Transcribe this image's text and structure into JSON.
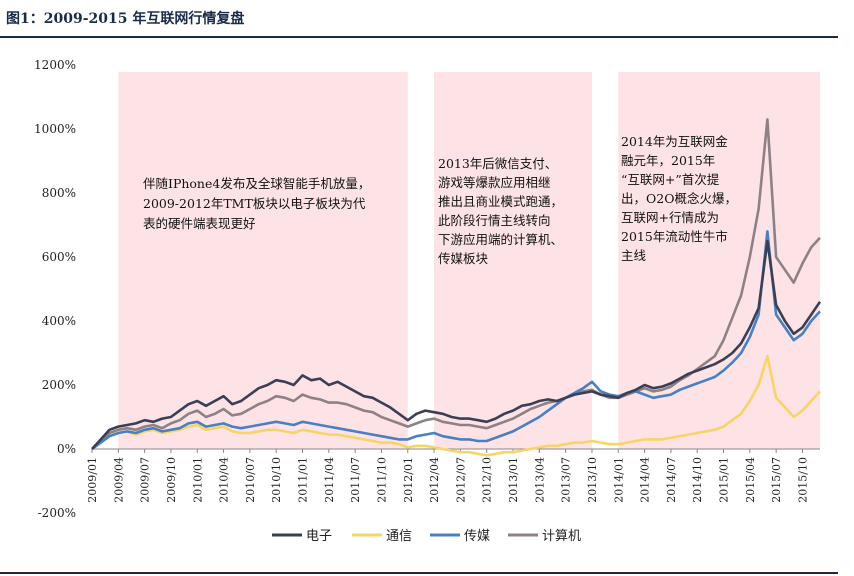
{
  "header": {
    "title": "图1：2009-2015 年互联网行情复盘"
  },
  "colors": {
    "shade": "#fde3e5",
    "axis": "#888888"
  },
  "chart_data": {
    "type": "line",
    "title": "图1：2009-2015 年互联网行情复盘",
    "xlabel": "",
    "ylabel": "",
    "ylim": [
      -200,
      1200
    ],
    "y_ticks": [
      "1200%",
      "1000%",
      "800%",
      "600%",
      "400%",
      "200%",
      "0%",
      "-200%"
    ],
    "y_tick_values": [
      1200,
      1000,
      800,
      600,
      400,
      200,
      0,
      -200
    ],
    "x_ticks": [
      "2009/01",
      "2009/04",
      "2009/07",
      "2009/10",
      "2010/01",
      "2010/04",
      "2010/07",
      "2010/10",
      "2011/01",
      "2011/04",
      "2011/07",
      "2011/10",
      "2012/01",
      "2012/04",
      "2012/07",
      "2012/10",
      "2013/01",
      "2013/04",
      "2013/07",
      "2013/10",
      "2014/01",
      "2014/04",
      "2014/07",
      "2014/10",
      "2015/01",
      "2015/04",
      "2015/07",
      "2015/10"
    ],
    "x": [
      "2009/01",
      "2009/02",
      "2009/03",
      "2009/04",
      "2009/05",
      "2009/06",
      "2009/07",
      "2009/08",
      "2009/09",
      "2009/10",
      "2009/11",
      "2009/12",
      "2010/01",
      "2010/02",
      "2010/03",
      "2010/04",
      "2010/05",
      "2010/06",
      "2010/07",
      "2010/08",
      "2010/09",
      "2010/10",
      "2010/11",
      "2010/12",
      "2011/01",
      "2011/02",
      "2011/03",
      "2011/04",
      "2011/05",
      "2011/06",
      "2011/07",
      "2011/08",
      "2011/09",
      "2011/10",
      "2011/11",
      "2011/12",
      "2012/01",
      "2012/02",
      "2012/03",
      "2012/04",
      "2012/05",
      "2012/06",
      "2012/07",
      "2012/08",
      "2012/09",
      "2012/10",
      "2012/11",
      "2012/12",
      "2013/01",
      "2013/02",
      "2013/03",
      "2013/04",
      "2013/05",
      "2013/06",
      "2013/07",
      "2013/08",
      "2013/09",
      "2013/10",
      "2013/11",
      "2013/12",
      "2014/01",
      "2014/02",
      "2014/03",
      "2014/04",
      "2014/05",
      "2014/06",
      "2014/07",
      "2014/08",
      "2014/09",
      "2014/10",
      "2014/11",
      "2014/12",
      "2015/01",
      "2015/02",
      "2015/03",
      "2015/04",
      "2015/05",
      "2015/06",
      "2015/07",
      "2015/08",
      "2015/09",
      "2015/10",
      "2015/11",
      "2015/12"
    ],
    "series": [
      {
        "name": "电子",
        "color": "#3b3f55",
        "values": [
          0,
          30,
          60,
          70,
          75,
          80,
          90,
          85,
          95,
          100,
          120,
          140,
          150,
          135,
          150,
          165,
          140,
          150,
          170,
          190,
          200,
          215,
          210,
          200,
          230,
          215,
          220,
          200,
          210,
          195,
          180,
          165,
          160,
          145,
          130,
          110,
          90,
          110,
          120,
          115,
          110,
          100,
          95,
          95,
          90,
          85,
          95,
          110,
          120,
          135,
          140,
          150,
          155,
          150,
          160,
          170,
          175,
          180,
          170,
          165,
          160,
          175,
          185,
          200,
          190,
          195,
          205,
          220,
          235,
          245,
          255,
          265,
          280,
          300,
          330,
          380,
          440,
          650,
          450,
          400,
          360,
          380,
          420,
          460
        ]
      },
      {
        "name": "通信",
        "color": "#f7d468",
        "values": [
          0,
          20,
          40,
          50,
          55,
          45,
          55,
          60,
          50,
          55,
          60,
          70,
          75,
          60,
          65,
          70,
          55,
          50,
          50,
          55,
          60,
          60,
          55,
          50,
          60,
          55,
          50,
          45,
          45,
          40,
          35,
          30,
          25,
          20,
          20,
          15,
          5,
          10,
          10,
          5,
          0,
          -5,
          -10,
          -10,
          -15,
          -20,
          -15,
          -10,
          -10,
          -5,
          0,
          5,
          10,
          10,
          15,
          20,
          20,
          25,
          20,
          15,
          15,
          20,
          25,
          30,
          30,
          30,
          35,
          40,
          45,
          50,
          55,
          60,
          70,
          90,
          110,
          150,
          200,
          290,
          160,
          130,
          100,
          120,
          150,
          180
        ]
      },
      {
        "name": "传媒",
        "color": "#4a7fc1",
        "values": [
          0,
          20,
          40,
          50,
          55,
          50,
          60,
          65,
          55,
          60,
          65,
          80,
          85,
          70,
          75,
          80,
          70,
          65,
          70,
          75,
          80,
          85,
          80,
          75,
          85,
          80,
          75,
          70,
          65,
          60,
          55,
          50,
          45,
          40,
          35,
          30,
          30,
          40,
          45,
          50,
          40,
          35,
          30,
          30,
          25,
          25,
          35,
          45,
          55,
          70,
          85,
          100,
          120,
          140,
          160,
          175,
          190,
          210,
          180,
          170,
          165,
          175,
          180,
          170,
          160,
          165,
          170,
          185,
          195,
          205,
          215,
          225,
          245,
          270,
          300,
          350,
          420,
          680,
          420,
          380,
          340,
          360,
          400,
          430
        ]
      },
      {
        "name": "计算机",
        "color": "#8e8185",
        "values": [
          0,
          25,
          50,
          60,
          65,
          60,
          70,
          75,
          65,
          80,
          90,
          110,
          120,
          100,
          110,
          125,
          105,
          110,
          125,
          140,
          150,
          165,
          160,
          150,
          170,
          160,
          155,
          145,
          145,
          140,
          130,
          120,
          115,
          100,
          90,
          80,
          70,
          80,
          90,
          95,
          85,
          80,
          75,
          75,
          70,
          65,
          75,
          85,
          95,
          110,
          125,
          135,
          145,
          150,
          160,
          170,
          180,
          185,
          170,
          160,
          160,
          170,
          180,
          190,
          180,
          185,
          195,
          215,
          230,
          250,
          270,
          290,
          340,
          410,
          480,
          600,
          750,
          1030,
          600,
          560,
          520,
          580,
          630,
          660
        ]
      }
    ],
    "shaded_periods": [
      {
        "start": "2009/04",
        "end": "2012/01"
      },
      {
        "start": "2012/04",
        "end": "2013/10"
      },
      {
        "start": "2014/01",
        "end": "2015/12"
      }
    ],
    "annotations": [
      {
        "lines": [
          "伴随IPhone4发布及全球智能手机放量，",
          "2009-2012年TMT板块以电子板块为代",
          "表的硬件端表现更好"
        ]
      },
      {
        "lines": [
          "2013年后微信支付、",
          "游戏等爆款应用相继",
          "推出且商业模式跑通，",
          "此阶段行情主线转向",
          "下游应用端的计算机、",
          "传媒板块"
        ]
      },
      {
        "lines": [
          "2014年为互联网金",
          "融元年，2015年",
          "“互联网+”首次提",
          "出，O2O概念火爆，",
          "互联网+行情成为",
          "2015年流动性牛市",
          "主线"
        ]
      }
    ],
    "legend_position": "bottom-center",
    "grid": false
  }
}
